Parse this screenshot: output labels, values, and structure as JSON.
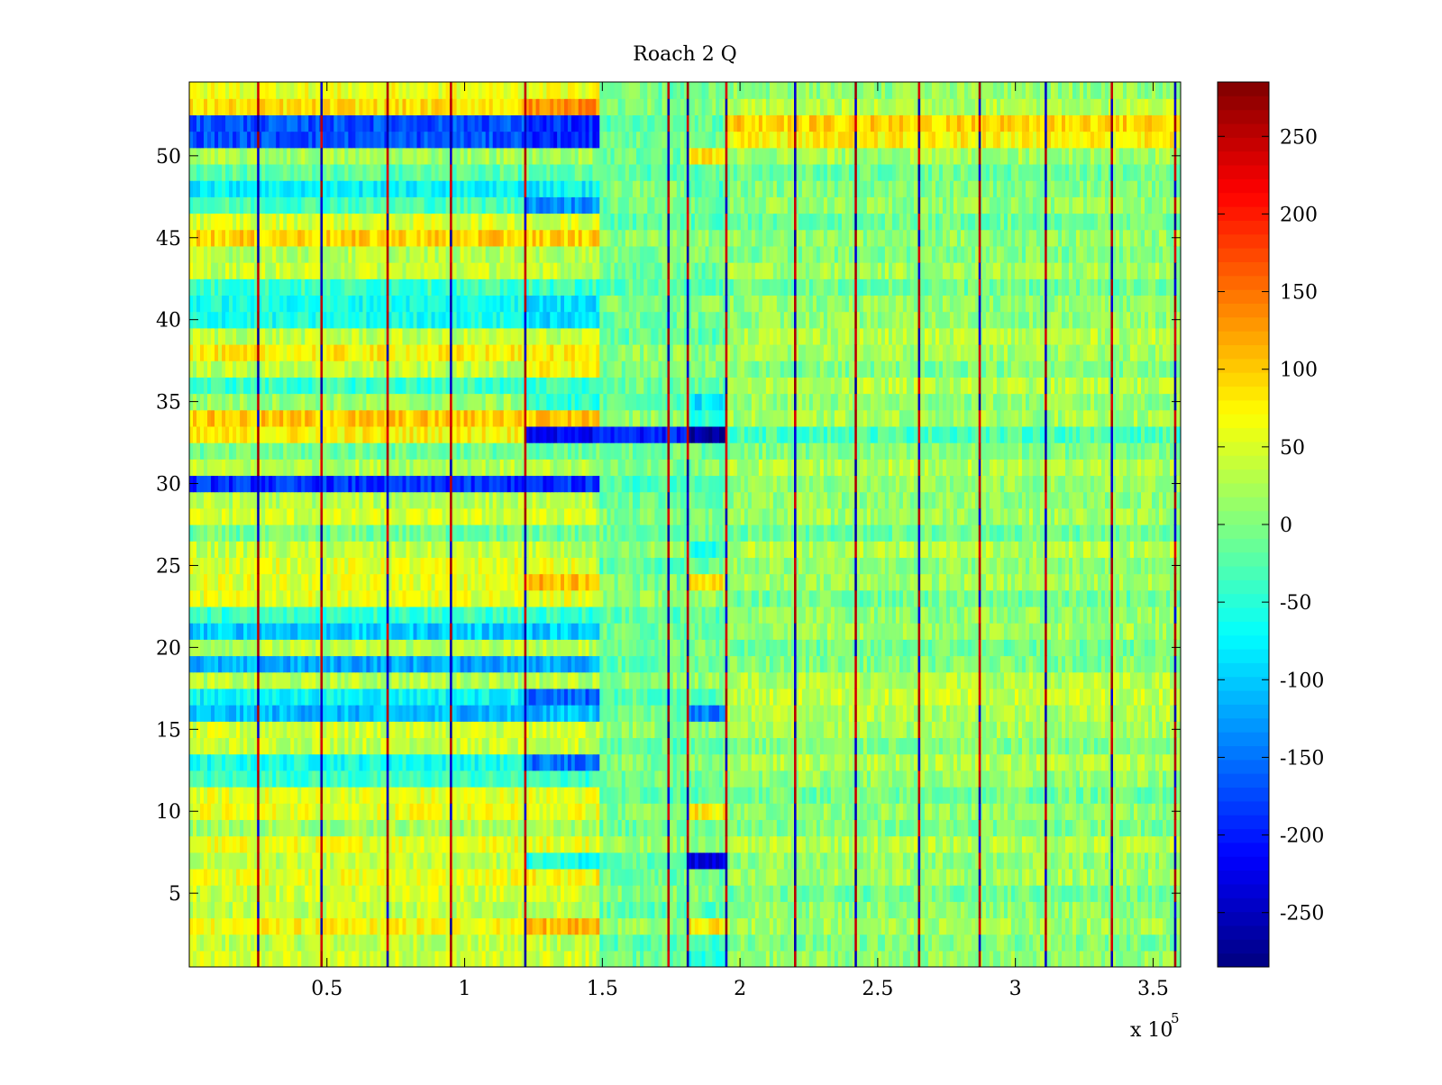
{
  "chart_data": {
    "type": "heatmap",
    "title": "Roach 2 Q",
    "xlabel": "",
    "ylabel": "",
    "x_scale_label": "x 10",
    "x_scale_exponent": "5",
    "xlim": [
      0,
      3.6
    ],
    "ylim": [
      0.5,
      54.5
    ],
    "xticks": [
      0.5,
      1,
      1.5,
      2,
      2.5,
      3,
      3.5
    ],
    "xtick_labels": [
      "0.5",
      "1",
      "1.5",
      "2",
      "2.5",
      "3",
      "3.5"
    ],
    "yticks": [
      5,
      10,
      15,
      20,
      25,
      30,
      35,
      40,
      45,
      50
    ],
    "ytick_labels": [
      "5",
      "10",
      "15",
      "20",
      "25",
      "30",
      "35",
      "40",
      "45",
      "50"
    ],
    "colorbar": {
      "colormap": "jet",
      "range": [
        -285,
        285
      ],
      "ticks": [
        -250,
        -200,
        -150,
        -100,
        -50,
        0,
        50,
        100,
        150,
        200,
        250
      ],
      "tick_labels": [
        "-250",
        "-200",
        "-150",
        "-100",
        "-50",
        "0",
        "50",
        "100",
        "150",
        "200",
        "250"
      ]
    },
    "rows": 54,
    "block_edges_x1e5": [
      0,
      1.22,
      1.49,
      1.81,
      1.95,
      3.6
    ],
    "row_levels_segment_a": [
      45,
      35,
      70,
      35,
      45,
      60,
      35,
      60,
      20,
      60,
      55,
      -40,
      -60,
      40,
      45,
      -110,
      -70,
      30,
      -120,
      30,
      -100,
      -40,
      55,
      55,
      55,
      35,
      -10,
      45,
      30,
      -190,
      30,
      -10,
      75,
      100,
      15,
      -40,
      35,
      75,
      35,
      -60,
      -60,
      -40,
      40,
      30,
      95,
      50,
      -30,
      -75,
      -20,
      20,
      -170,
      -170,
      85,
      60
    ],
    "row_levels_segment_b": [
      45,
      35,
      110,
      35,
      45,
      70,
      -60,
      60,
      20,
      60,
      55,
      -40,
      -150,
      40,
      45,
      -110,
      -160,
      30,
      -120,
      30,
      -100,
      -40,
      55,
      110,
      55,
      35,
      -10,
      45,
      30,
      -190,
      30,
      -10,
      -220,
      100,
      -50,
      -40,
      70,
      75,
      35,
      -90,
      -90,
      -40,
      40,
      30,
      95,
      50,
      -130,
      -75,
      -20,
      20,
      -190,
      -190,
      130,
      60
    ],
    "row_levels_segment_c": [
      -10,
      -20,
      10,
      -20,
      0,
      -10,
      -20,
      10,
      -10,
      0,
      -20,
      -10,
      0,
      -20,
      10,
      -10,
      -20,
      10,
      -20,
      0,
      -10,
      -20,
      10,
      0,
      -20,
      10,
      -10,
      0,
      -10,
      -30,
      0,
      -10,
      -200,
      10,
      -20,
      -10,
      0,
      10,
      -20,
      -10,
      0,
      -20,
      -10,
      0,
      10,
      -20,
      -10,
      0,
      -20,
      -10,
      -10,
      -20,
      0,
      -10
    ],
    "row_levels_segment_d": [
      -60,
      -40,
      80,
      -20,
      0,
      -10,
      -230,
      10,
      -10,
      80,
      -20,
      -10,
      0,
      -20,
      10,
      -150,
      -20,
      10,
      -20,
      0,
      -10,
      -20,
      10,
      80,
      -20,
      -50,
      -10,
      0,
      -10,
      -30,
      0,
      -10,
      -270,
      -50,
      -80,
      -10,
      0,
      10,
      -20,
      -10,
      0,
      -20,
      -10,
      0,
      10,
      -20,
      -10,
      -30,
      -20,
      80,
      -10,
      -20,
      0,
      -10
    ],
    "row_levels_segment_e": [
      10,
      0,
      20,
      10,
      -10,
      20,
      10,
      30,
      0,
      10,
      -10,
      10,
      30,
      0,
      20,
      30,
      40,
      30,
      0,
      -10,
      20,
      10,
      -10,
      20,
      10,
      30,
      -10,
      20,
      10,
      10,
      30,
      0,
      -30,
      20,
      10,
      30,
      0,
      20,
      30,
      10,
      10,
      -10,
      20,
      0,
      10,
      -10,
      10,
      0,
      -10,
      20,
      75,
      95,
      30,
      10
    ],
    "striations_x1e5": [
      0.25,
      0.48,
      0.72,
      0.95,
      1.22,
      1.74,
      1.81,
      1.95,
      2.2,
      2.42,
      2.65,
      2.87,
      3.11,
      3.35,
      3.58
    ]
  }
}
